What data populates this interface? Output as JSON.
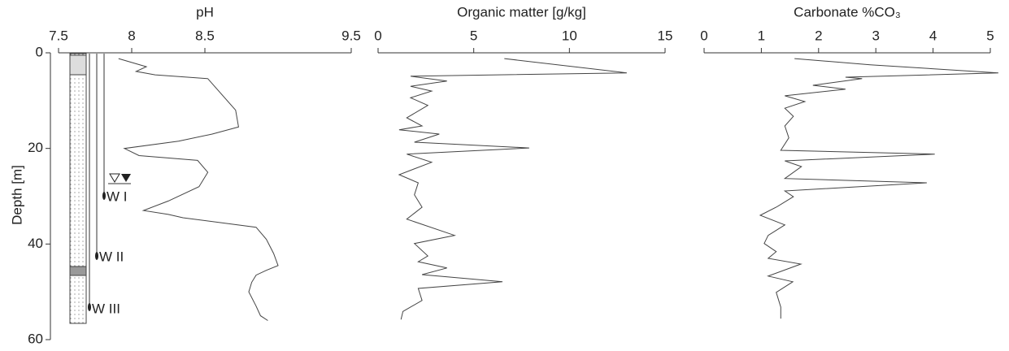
{
  "chart_data": [
    {
      "type": "line",
      "title": "pH",
      "ylabel": "Depth [m]",
      "invert_y": true,
      "color": "#444",
      "xlim": [
        7.5,
        9.5
      ],
      "xticks": [
        7.5,
        8,
        8.5,
        9.5
      ],
      "ylim": [
        0,
        60
      ],
      "yticks": [
        0,
        20,
        40,
        60
      ],
      "annotations": [
        "W I",
        "W II",
        "W III"
      ],
      "y": [
        1.2,
        2.9,
        3.9,
        4.6,
        5.4,
        12,
        15.5,
        17,
        18.5,
        20,
        21.5,
        22.5,
        25,
        28,
        31,
        33,
        33.8,
        34.5,
        36.5,
        39,
        42,
        44.5,
        45.5,
        46.5,
        48,
        50,
        53,
        55,
        56
      ],
      "values": [
        7.91,
        8.1,
        8.03,
        8.16,
        8.52,
        8.71,
        8.73,
        8.55,
        8.32,
        7.95,
        8.05,
        8.45,
        8.52,
        8.46,
        8.25,
        8.08,
        8.25,
        8.35,
        8.85,
        8.92,
        8.97,
        9.0,
        8.92,
        8.85,
        8.82,
        8.8,
        8.85,
        8.88,
        8.93
      ]
    },
    {
      "type": "line",
      "title": "Organic matter [g/kg]",
      "invert_y": true,
      "color": "#444",
      "xlim": [
        0,
        15
      ],
      "xticks": [
        0,
        5,
        10,
        15
      ],
      "ylim": [
        0,
        60
      ],
      "y": [
        1.2,
        4.2,
        4.9,
        5.9,
        7,
        8,
        9.4,
        11,
        13.6,
        15.3,
        16.1,
        17,
        18.7,
        19.9,
        21.2,
        22.9,
        25.5,
        27.2,
        29.7,
        32.3,
        34.8,
        38.2,
        39.9,
        42.5,
        43.7,
        45,
        46.4,
        47.9,
        49.3,
        51.8,
        54.1,
        55.8
      ],
      "values": [
        6.6,
        13.0,
        1.7,
        3.6,
        1.7,
        2.8,
        1.7,
        2.6,
        1.5,
        2.3,
        1.1,
        3.2,
        1.9,
        7.9,
        1.5,
        2.8,
        1.1,
        2.1,
        1.9,
        2.3,
        1.5,
        4.0,
        1.9,
        2.6,
        2.1,
        3.6,
        2.3,
        6.5,
        2.1,
        2.3,
        1.3,
        1.2
      ]
    },
    {
      "type": "line",
      "title": "Carbonate %CO₃",
      "invert_y": true,
      "color": "#444",
      "xlim": [
        0,
        5
      ],
      "xticks": [
        0,
        1,
        2,
        3,
        4,
        5
      ],
      "ylim": [
        0,
        60
      ],
      "y": [
        1.2,
        2.5,
        4.2,
        5.1,
        5.4,
        6.8,
        7.6,
        9,
        10.2,
        11.6,
        13.3,
        15.3,
        17.8,
        20.4,
        21.2,
        22.6,
        23.8,
        26.3,
        27.2,
        28.9,
        30.1,
        32.3,
        34,
        36,
        38.2,
        39.9,
        41.6,
        43,
        44.2,
        46.7,
        47.9,
        50.1,
        53.2,
        55.6
      ],
      "values": [
        1.58,
        2.9,
        5.14,
        2.47,
        2.76,
        1.9,
        2.47,
        1.41,
        1.76,
        1.41,
        1.56,
        1.41,
        1.48,
        1.34,
        4.03,
        1.41,
        1.7,
        1.41,
        3.89,
        1.41,
        1.56,
        1.26,
        0.98,
        1.41,
        1.12,
        1.05,
        1.26,
        1.12,
        1.69,
        1.12,
        1.55,
        1.26,
        1.34,
        1.34
      ]
    }
  ]
}
